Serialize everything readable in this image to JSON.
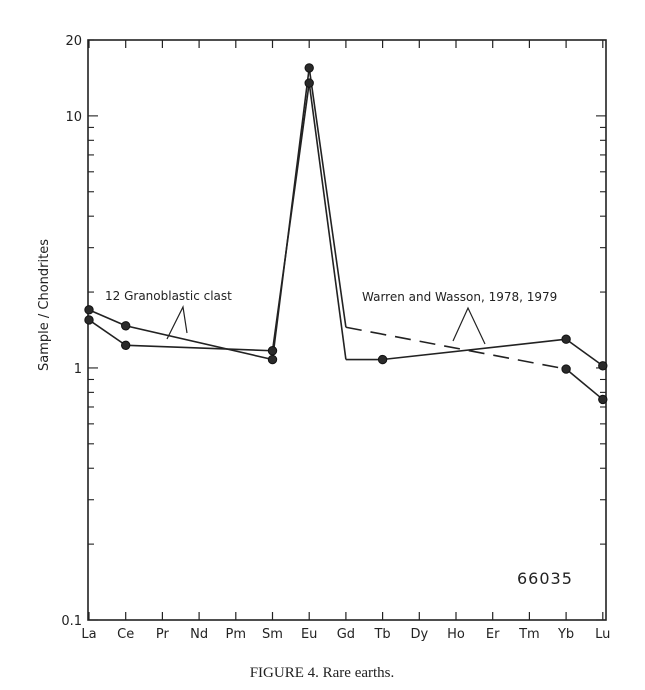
{
  "chart_data": {
    "type": "line",
    "yscale": "log",
    "ylim": [
      0.1,
      20
    ],
    "ylabel": "Sample / Chondrites",
    "categories": [
      "La",
      "Ce",
      "Pr",
      "Nd",
      "Pm",
      "Sm",
      "Eu",
      "Gd",
      "Tb",
      "Dy",
      "Ho",
      "Er",
      "Tm",
      "Yb",
      "Lu"
    ],
    "yticks": [
      {
        "value": 0.1,
        "label": "0.1"
      },
      {
        "value": 1,
        "label": "1"
      },
      {
        "value": 10,
        "label": "10"
      },
      {
        "value": 20,
        "label": "20"
      }
    ],
    "series": [
      {
        "name": "12 Granoblastic clast",
        "points": [
          {
            "x": "La",
            "y": 1.55
          },
          {
            "x": "Ce",
            "y": 1.23
          },
          {
            "x": "Sm",
            "y": 1.17
          },
          {
            "x": "Eu",
            "y": 13.5
          },
          {
            "x": "Gd",
            "y": 1.08
          },
          {
            "x": "Tb",
            "y": 1.08
          },
          {
            "x": "Yb",
            "y": 1.3
          },
          {
            "x": "Lu",
            "y": 1.02
          }
        ],
        "markers": [
          "La",
          "Ce",
          "Sm",
          "Eu",
          "Tb",
          "Yb",
          "Lu"
        ],
        "dashed_segments": []
      },
      {
        "name": "Warren and Wasson, 1978, 1979",
        "points": [
          {
            "x": "La",
            "y": 1.7
          },
          {
            "x": "Ce",
            "y": 1.47
          },
          {
            "x": "Sm",
            "y": 1.08
          },
          {
            "x": "Eu",
            "y": 15.5
          },
          {
            "x": "Gd",
            "y": 1.45
          },
          {
            "x": "Yb",
            "y": 0.99
          },
          {
            "x": "Lu",
            "y": 0.75
          }
        ],
        "markers": [
          "La",
          "Ce",
          "Sm",
          "Eu",
          "Yb",
          "Lu"
        ],
        "dashed_segments": [
          [
            "Gd",
            "Yb"
          ]
        ]
      }
    ],
    "annotations": [
      {
        "text": "12 Granoblastic clast"
      },
      {
        "text": "Warren and Wasson, 1978, 1979"
      }
    ],
    "sample_id": "66035"
  },
  "caption": "FIGURE 4.  Rare earths."
}
